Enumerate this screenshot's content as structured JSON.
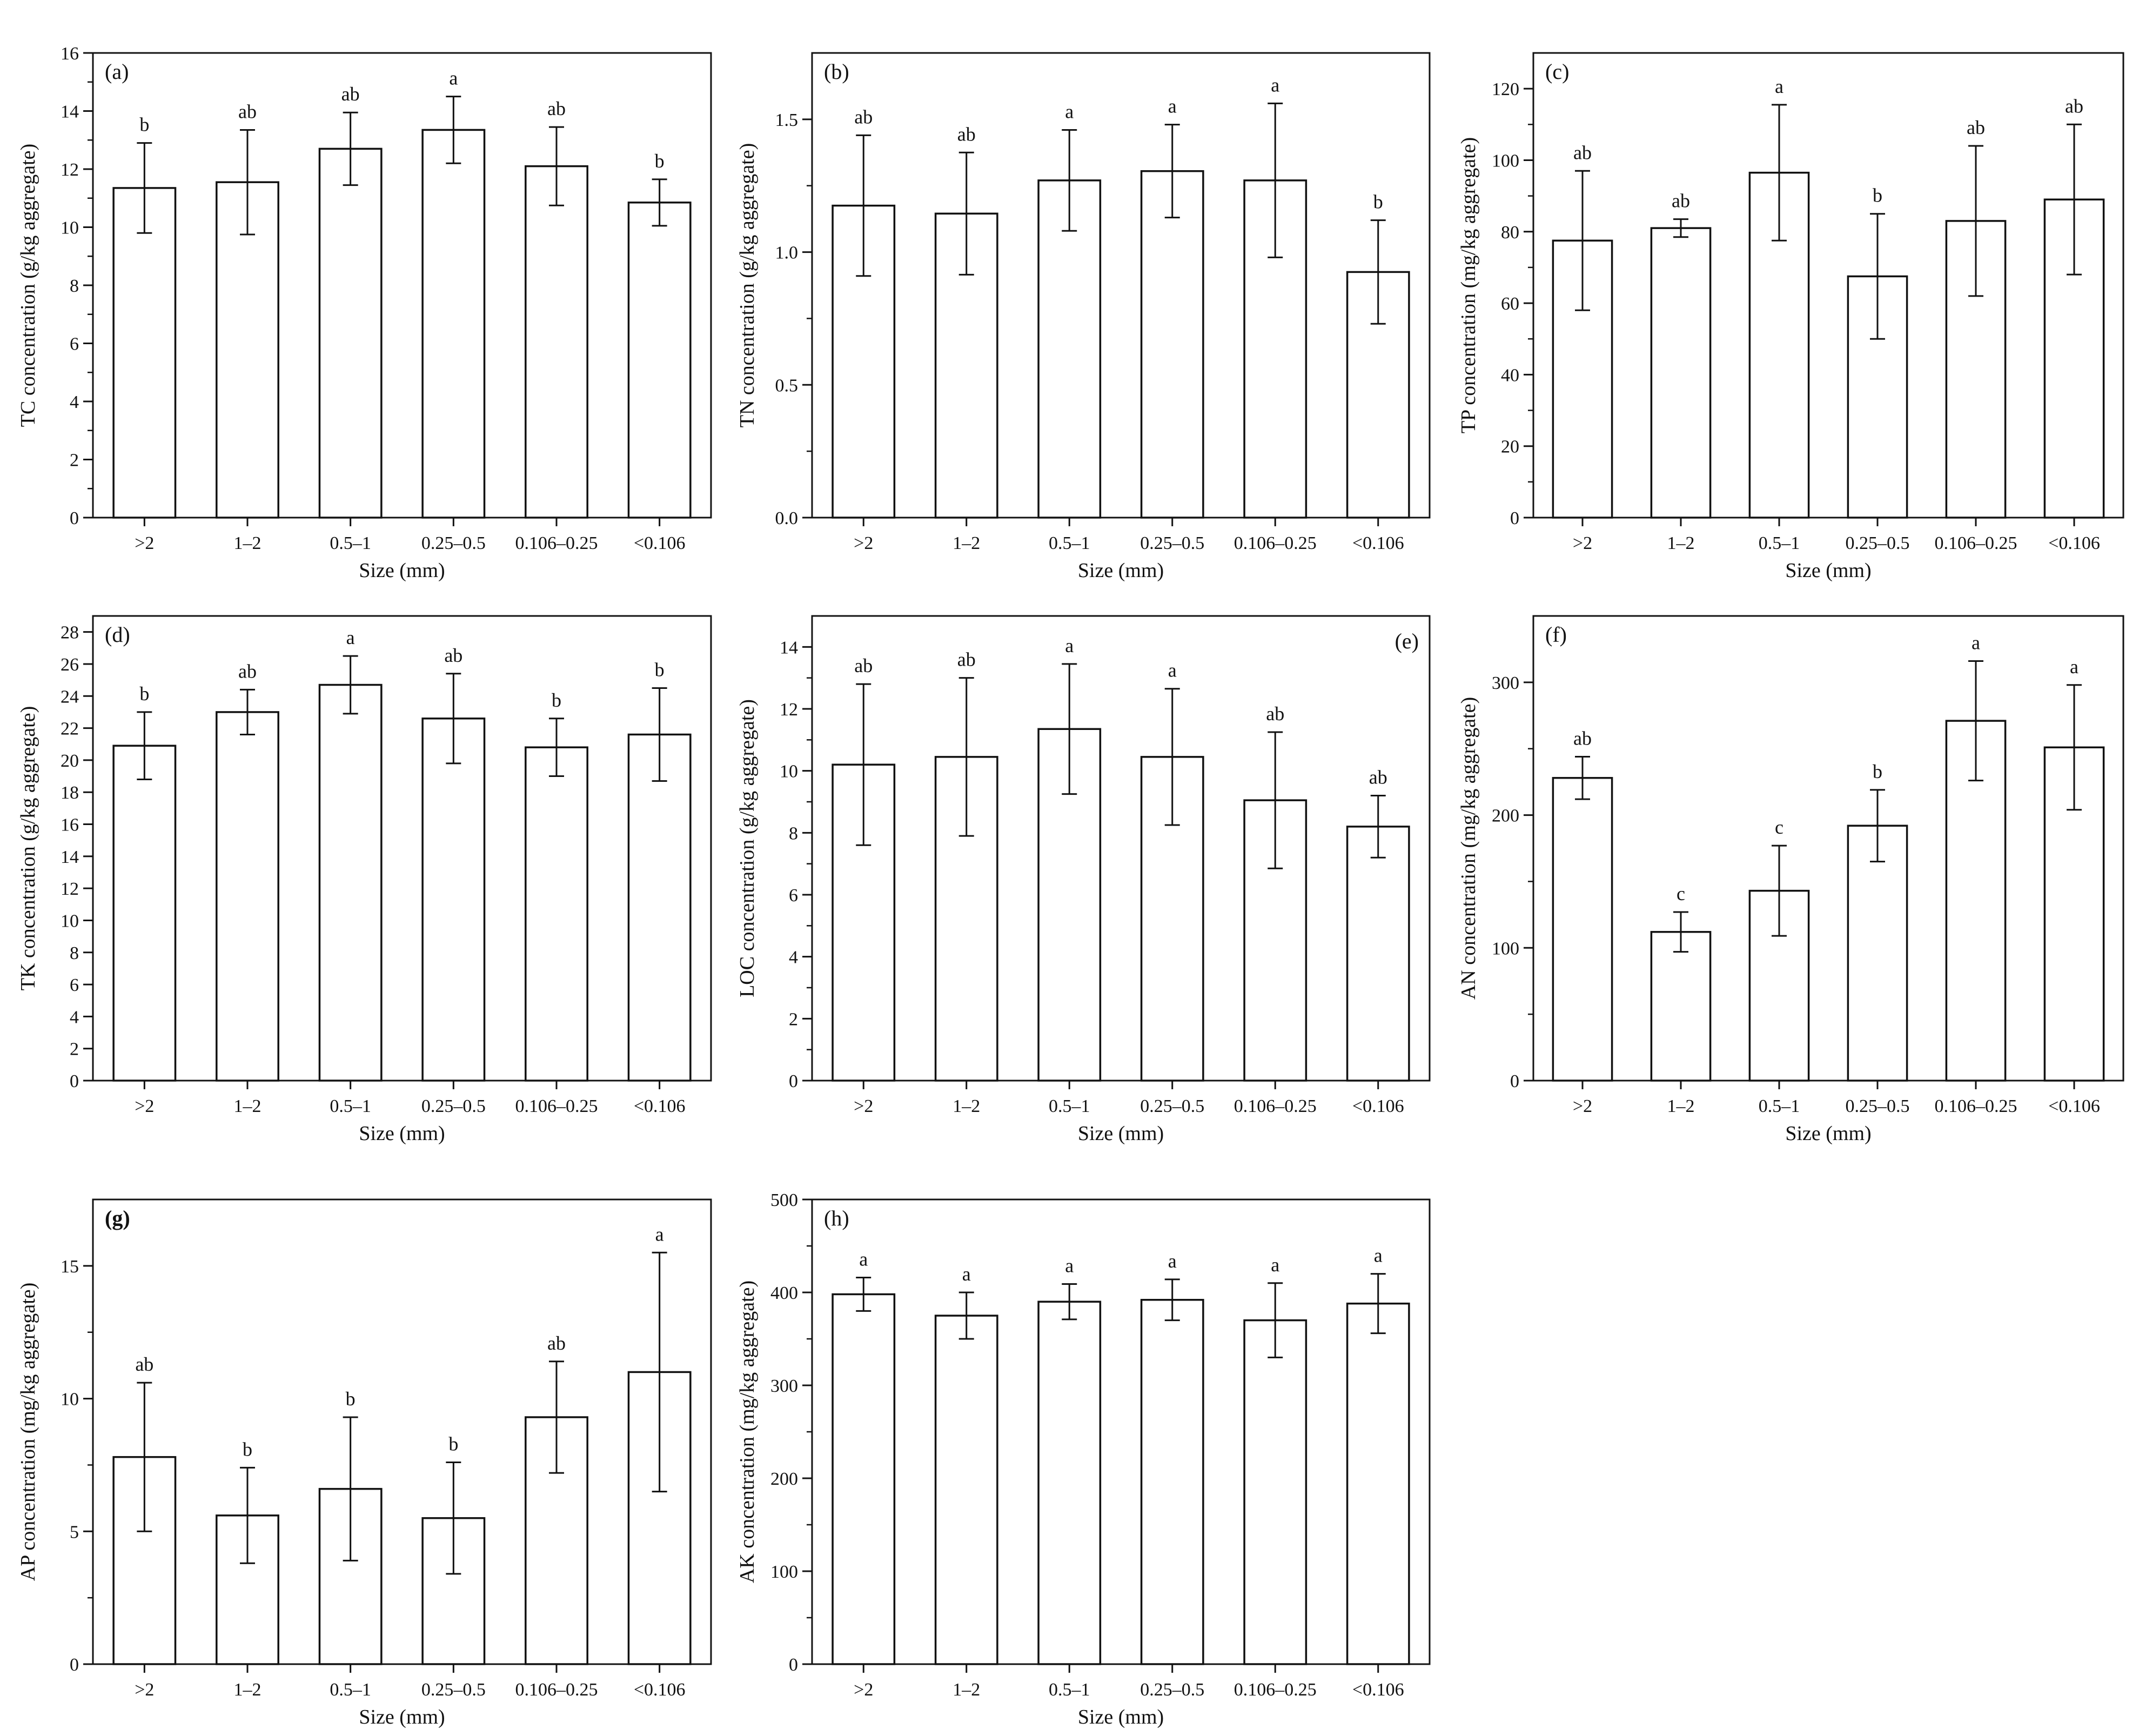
{
  "chart_data": [
    {
      "panel": "(a)",
      "type": "bar",
      "ylabel": "TC concentration (g/kg aggregate)",
      "xlabel": "Size (mm)",
      "categories": [
        ">2",
        "1–2",
        "0.5–1",
        "0.25–0.5",
        "0.106–0.25",
        "<0.106"
      ],
      "values": [
        11.35,
        11.55,
        12.7,
        13.35,
        12.1,
        10.85
      ],
      "errors": [
        1.55,
        1.8,
        1.25,
        1.15,
        1.35,
        0.8
      ],
      "letters": [
        "b",
        "ab",
        "ab",
        "a",
        "ab",
        "b"
      ],
      "ylim": [
        0,
        16
      ],
      "yticks": [
        0,
        2,
        4,
        6,
        8,
        10,
        12,
        14,
        16
      ],
      "ytick_labels": [
        "0",
        "2",
        "4",
        "6",
        "8",
        "10",
        "12",
        "14",
        "16"
      ],
      "minor_ticks": true,
      "label_pos": "left"
    },
    {
      "panel": "(b)",
      "type": "bar",
      "ylabel": "TN concentration (g/kg aggregate)",
      "xlabel": "Size (mm)",
      "categories": [
        ">2",
        "1–2",
        "0.5–1",
        "0.25–0.5",
        "0.106–0.25",
        "<0.106"
      ],
      "values": [
        1.175,
        1.145,
        1.27,
        1.305,
        1.27,
        0.925
      ],
      "errors": [
        0.265,
        0.23,
        0.19,
        0.175,
        0.29,
        0.195
      ],
      "letters": [
        "ab",
        "ab",
        "a",
        "a",
        "a",
        "b"
      ],
      "ylim": [
        0,
        1.75
      ],
      "yticks": [
        0,
        0.5,
        1.0,
        1.5
      ],
      "ytick_labels": [
        "0.0",
        "0.5",
        "1.0",
        "1.5"
      ],
      "minor_ticks": true,
      "label_pos": "left"
    },
    {
      "panel": "(c)",
      "type": "bar",
      "ylabel": "TP concentration (mg/kg aggregate)",
      "xlabel": "Size (mm)",
      "categories": [
        ">2",
        "1–2",
        "0.5–1",
        "0.25–0.5",
        "0.106–0.25",
        "<0.106"
      ],
      "values": [
        77.5,
        81,
        96.5,
        67.5,
        83,
        89
      ],
      "errors": [
        19.5,
        2.5,
        19,
        17.5,
        21,
        21
      ],
      "letters": [
        "ab",
        "ab",
        "a",
        "b",
        "ab",
        "ab"
      ],
      "ylim": [
        0,
        130
      ],
      "yticks": [
        0,
        20,
        40,
        60,
        80,
        100,
        120
      ],
      "ytick_labels": [
        "0",
        "20",
        "40",
        "60",
        "80",
        "100",
        "120"
      ],
      "minor_ticks": true,
      "label_pos": "left"
    },
    {
      "panel": "(d)",
      "type": "bar",
      "ylabel": "TK concentration (g/kg aggregate)",
      "xlabel": "Size (mm)",
      "categories": [
        ">2",
        "1–2",
        "0.5–1",
        "0.25–0.5",
        "0.106–0.25",
        "<0.106"
      ],
      "values": [
        20.9,
        23.0,
        24.7,
        22.6,
        20.8,
        21.6
      ],
      "errors": [
        2.1,
        1.4,
        1.8,
        2.8,
        1.8,
        2.9
      ],
      "letters": [
        "b",
        "ab",
        "a",
        "ab",
        "b",
        "b"
      ],
      "ylim": [
        0,
        29
      ],
      "yticks": [
        0,
        2,
        4,
        6,
        8,
        10,
        12,
        14,
        16,
        18,
        20,
        22,
        24,
        26,
        28
      ],
      "ytick_labels": [
        "0",
        "2",
        "4",
        "6",
        "8",
        "10",
        "12",
        "14",
        "16",
        "18",
        "20",
        "22",
        "24",
        "26",
        "28"
      ],
      "minor_ticks": false,
      "label_pos": "left"
    },
    {
      "panel": "(e)",
      "type": "bar",
      "ylabel": "LOC concentration (g/kg aggregate)",
      "xlabel": "Size (mm)",
      "categories": [
        ">2",
        "1–2",
        "0.5–1",
        "0.25–0.5",
        "0.106–0.25",
        "<0.106"
      ],
      "values": [
        10.2,
        10.45,
        11.35,
        10.45,
        9.05,
        8.2
      ],
      "errors": [
        2.6,
        2.55,
        2.1,
        2.2,
        2.2,
        1.0
      ],
      "letters": [
        "ab",
        "ab",
        "a",
        "a",
        "ab",
        "ab"
      ],
      "ylim": [
        0,
        15
      ],
      "yticks": [
        0,
        2,
        4,
        6,
        8,
        10,
        12,
        14
      ],
      "ytick_labels": [
        "0",
        "2",
        "4",
        "6",
        "8",
        "10",
        "12",
        "14"
      ],
      "minor_ticks": true,
      "label_pos": "right"
    },
    {
      "panel": "(f)",
      "type": "bar",
      "ylabel": "AN concentration (mg/kg aggregate)",
      "xlabel": "Size (mm)",
      "categories": [
        ">2",
        "1–2",
        "0.5–1",
        "0.25–0.5",
        "0.106–0.25",
        "<0.106"
      ],
      "values": [
        228,
        112,
        143,
        192,
        271,
        251
      ],
      "errors": [
        16,
        15,
        34,
        27,
        45,
        47
      ],
      "letters": [
        "ab",
        "c",
        "c",
        "b",
        "a",
        "a"
      ],
      "ylim": [
        0,
        350
      ],
      "yticks": [
        0,
        100,
        200,
        300
      ],
      "ytick_labels": [
        "0",
        "100",
        "200",
        "300"
      ],
      "minor_ticks": true,
      "label_pos": "left"
    },
    {
      "panel": "(g)",
      "type": "bar",
      "ylabel": "AP concentration (mg/kg aggregate)",
      "xlabel": "Size (mm)",
      "categories": [
        ">2",
        "1–2",
        "0.5–1",
        "0.25–0.5",
        "0.106–0.25",
        "<0.106"
      ],
      "values": [
        7.8,
        5.6,
        6.6,
        5.5,
        9.3,
        11.0
      ],
      "errors": [
        2.8,
        1.8,
        2.7,
        2.1,
        2.1,
        4.5
      ],
      "letters": [
        "ab",
        "b",
        "b",
        "b",
        "ab",
        "a"
      ],
      "ylim": [
        0,
        17.5
      ],
      "yticks": [
        0,
        5,
        10,
        15
      ],
      "ytick_labels": [
        "0",
        "5",
        "10",
        "15"
      ],
      "minor_ticks": true,
      "label_pos": "left"
    },
    {
      "panel": "(h)",
      "type": "bar",
      "ylabel": "AK concentration (mg/kg aggregate)",
      "xlabel": "Size (mm)",
      "categories": [
        ">2",
        "1–2",
        "0.5–1",
        "0.25–0.5",
        "0.106–0.25",
        "<0.106"
      ],
      "values": [
        398,
        375,
        390,
        392,
        370,
        388
      ],
      "errors": [
        18,
        25,
        19,
        22,
        40,
        32
      ],
      "letters": [
        "a",
        "a",
        "a",
        "a",
        "a",
        "a"
      ],
      "ylim": [
        0,
        500
      ],
      "yticks": [
        0,
        100,
        200,
        300,
        400,
        500
      ],
      "ytick_labels": [
        "0",
        "100",
        "200",
        "300",
        "400",
        "500"
      ],
      "minor_ticks": true,
      "label_pos": "left"
    }
  ]
}
